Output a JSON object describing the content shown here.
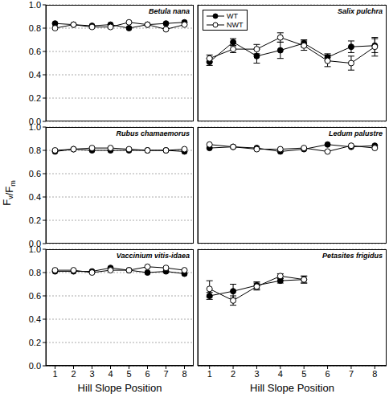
{
  "ylabel": "Fv/Fm",
  "chart_data": [
    {
      "type": "line",
      "title": "Betula nana",
      "x": [
        1,
        2,
        3,
        4,
        5,
        6,
        7,
        8
      ],
      "xlim": [
        0.5,
        8.5
      ],
      "xticks": [
        1,
        2,
        3,
        4,
        5,
        6,
        7,
        8
      ],
      "ylim": [
        0,
        1
      ],
      "yticks": [
        {
          "value": 0,
          "label": "0.0"
        },
        {
          "value": 0.2,
          "label": "0.2"
        },
        {
          "value": 0.4,
          "label": "0.4"
        },
        {
          "value": 0.6,
          "label": "0.6"
        },
        {
          "value": 0.8,
          "label": "0.8"
        },
        {
          "value": 1,
          "label": "1.0"
        }
      ],
      "grid": true,
      "tick_labels": "y",
      "series": [
        {
          "color": "#000000",
          "marker": "circle",
          "values": [
            0.84,
            0.83,
            0.82,
            0.83,
            0.8,
            0.83,
            0.84,
            0.85
          ]
        },
        {
          "color": "#000000",
          "marker": "open",
          "values": [
            0.8,
            0.83,
            0.81,
            0.81,
            0.85,
            0.83,
            0.79,
            0.83
          ]
        }
      ]
    },
    {
      "type": "line",
      "title": "Salix pulchra",
      "x": [
        1,
        2,
        3,
        4,
        5,
        6,
        7,
        8
      ],
      "xlim": [
        0.5,
        8.5
      ],
      "xticks": [
        1,
        2,
        3,
        4,
        5,
        6,
        7,
        8
      ],
      "ylim": [
        0,
        1
      ],
      "yticks": [
        {
          "value": 0,
          "label": "0.0"
        },
        {
          "value": 0.2,
          "label": "0.2"
        },
        {
          "value": 0.4,
          "label": "0.4"
        },
        {
          "value": 0.6,
          "label": "0.6"
        },
        {
          "value": 0.8,
          "label": "0.8"
        },
        {
          "value": 1,
          "label": "1.0"
        }
      ],
      "grid": true,
      "tick_labels": false,
      "legend": "upper left",
      "series": [
        {
          "name": "WT",
          "color": "#000000",
          "marker": "circle",
          "values": [
            0.51,
            0.68,
            0.56,
            0.61,
            0.67,
            0.55,
            0.64,
            0.65
          ],
          "errors": [
            0.03,
            0.03,
            0.06,
            0.07,
            0.03,
            0.03,
            0.05,
            0.06
          ]
        },
        {
          "name": "NWT",
          "color": "#000000",
          "marker": "open",
          "values": [
            0.54,
            0.62,
            0.62,
            0.72,
            0.65,
            0.52,
            0.5,
            0.64
          ],
          "errors": [
            0.03,
            0.03,
            0.04,
            0.04,
            0.04,
            0.05,
            0.06,
            0.08
          ]
        }
      ]
    },
    {
      "type": "line",
      "title": "Rubus chamaemorus",
      "x": [
        1,
        2,
        3,
        4,
        5,
        6,
        7,
        8
      ],
      "xlim": [
        0.5,
        8.5
      ],
      "xticks": [
        1,
        2,
        3,
        4,
        5,
        6,
        7,
        8
      ],
      "ylim": [
        0,
        1
      ],
      "yticks": [
        {
          "value": 0,
          "label": "0.0"
        },
        {
          "value": 0.2,
          "label": "0.2"
        },
        {
          "value": 0.4,
          "label": "0.4"
        },
        {
          "value": 0.6,
          "label": "0.6"
        },
        {
          "value": 0.8,
          "label": "0.8"
        },
        {
          "value": 1,
          "label": "1.0"
        }
      ],
      "grid": true,
      "tick_labels": "y",
      "series": [
        {
          "color": "#000000",
          "marker": "circle",
          "values": [
            0.79,
            0.81,
            0.8,
            0.8,
            0.8,
            0.8,
            0.8,
            0.79
          ]
        },
        {
          "color": "#000000",
          "marker": "open",
          "values": [
            0.8,
            0.81,
            0.82,
            0.82,
            0.81,
            0.8,
            0.8,
            0.81
          ]
        }
      ]
    },
    {
      "type": "line",
      "title": "Ledum palustre",
      "x": [
        1,
        2,
        3,
        4,
        5,
        6,
        7,
        8
      ],
      "xlim": [
        0.5,
        8.5
      ],
      "xticks": [
        1,
        2,
        3,
        4,
        5,
        6,
        7,
        8
      ],
      "ylim": [
        0,
        1
      ],
      "yticks": [
        {
          "value": 0,
          "label": "0.0"
        },
        {
          "value": 0.2,
          "label": "0.2"
        },
        {
          "value": 0.4,
          "label": "0.4"
        },
        {
          "value": 0.6,
          "label": "0.6"
        },
        {
          "value": 0.8,
          "label": "0.8"
        },
        {
          "value": 1,
          "label": "1.0"
        }
      ],
      "grid": true,
      "tick_labels": false,
      "series": [
        {
          "color": "#000000",
          "marker": "circle",
          "values": [
            0.82,
            0.83,
            0.82,
            0.79,
            0.81,
            0.85,
            0.83,
            0.84
          ]
        },
        {
          "color": "#000000",
          "marker": "open",
          "values": [
            0.85,
            0.83,
            0.81,
            0.81,
            0.82,
            0.79,
            0.84,
            0.82
          ]
        }
      ]
    },
    {
      "type": "line",
      "title": "Vaccinium vitis-idaea",
      "x": [
        1,
        2,
        3,
        4,
        5,
        6,
        7,
        8
      ],
      "xlim": [
        0.5,
        8.5
      ],
      "xticks": [
        1,
        2,
        3,
        4,
        5,
        6,
        7,
        8
      ],
      "ylim": [
        0,
        1
      ],
      "yticks": [
        {
          "value": 0,
          "label": "0.0"
        },
        {
          "value": 0.2,
          "label": "0.2"
        },
        {
          "value": 0.4,
          "label": "0.4"
        },
        {
          "value": 0.6,
          "label": "0.6"
        },
        {
          "value": 0.8,
          "label": "0.8"
        },
        {
          "value": 1,
          "label": "1.0"
        }
      ],
      "grid": true,
      "xlabel": "Hill Slope Position",
      "series": [
        {
          "color": "#000000",
          "marker": "circle",
          "values": [
            0.81,
            0.81,
            0.81,
            0.84,
            0.82,
            0.8,
            0.81,
            0.79
          ]
        },
        {
          "color": "#000000",
          "marker": "open",
          "values": [
            0.82,
            0.82,
            0.8,
            0.82,
            0.82,
            0.85,
            0.84,
            0.82
          ]
        }
      ]
    },
    {
      "type": "line",
      "title": "Petasites frigidus",
      "x": [
        1,
        2,
        3,
        4,
        5,
        6,
        7,
        8
      ],
      "xlim": [
        0.5,
        8.5
      ],
      "xticks": [
        1,
        2,
        3,
        4,
        5,
        6,
        7,
        8
      ],
      "ylim": [
        0,
        1
      ],
      "yticks": [
        {
          "value": 0,
          "label": "0.0"
        },
        {
          "value": 0.2,
          "label": "0.2"
        },
        {
          "value": 0.4,
          "label": "0.4"
        },
        {
          "value": 0.6,
          "label": "0.6"
        },
        {
          "value": 0.8,
          "label": "0.8"
        },
        {
          "value": 1,
          "label": "1.0"
        }
      ],
      "grid": true,
      "tick_labels": "x",
      "xlabel": "Hill Slope Position",
      "series": [
        {
          "color": "#000000",
          "marker": "circle",
          "values": [
            0.6,
            0.64,
            0.69,
            0.73,
            0.74,
            null,
            null,
            null
          ],
          "errors": [
            0.03,
            0.06,
            0.03,
            0.02,
            0.03,
            null,
            null,
            null
          ]
        },
        {
          "color": "#000000",
          "marker": "open",
          "values": [
            0.66,
            0.56,
            0.68,
            0.77,
            0.74,
            null,
            null,
            null
          ],
          "errors": [
            0.07,
            0.04,
            0.03,
            0.02,
            0.03,
            null,
            null,
            null
          ]
        }
      ]
    }
  ]
}
